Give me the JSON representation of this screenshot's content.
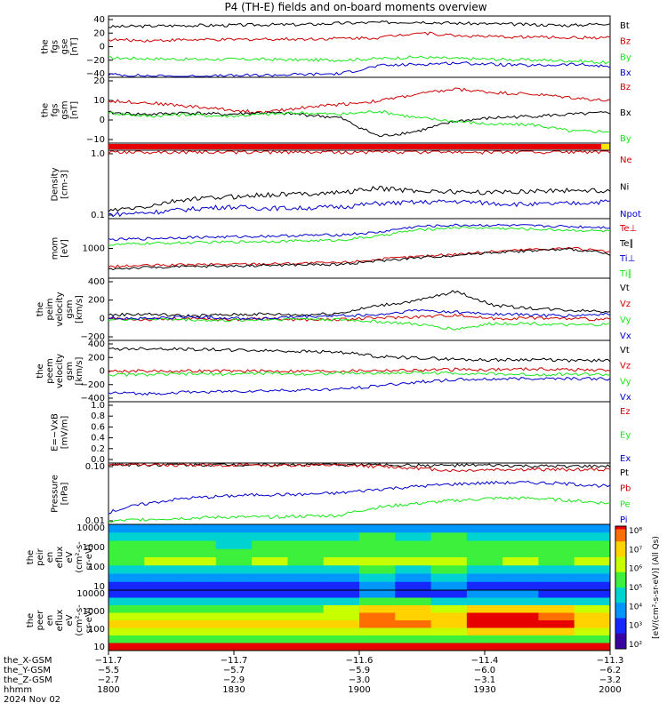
{
  "title": "P4 (TH-E) fields and on-board moments overview",
  "colors": {
    "black": "#000000",
    "red": "#cc0000",
    "green": "#19e619",
    "blue": "#0000cc",
    "bar_red": "#e60000",
    "bar_yellow": "#ffe600"
  },
  "chart_data": [
    {
      "type": "line",
      "ylabel": [
        "the",
        "fgs",
        "gse",
        "[nT]"
      ],
      "yticks": [
        "40",
        "20",
        "0",
        "−20",
        "−40"
      ],
      "ylim": [
        -40,
        45
      ],
      "series": [
        {
          "name": "Bt",
          "color": "black",
          "values": [
            30,
            31,
            32,
            32,
            33,
            33,
            35,
            36,
            37,
            35,
            34,
            33,
            32,
            35
          ]
        },
        {
          "name": "Bz",
          "color": "red",
          "values": [
            12,
            11,
            12,
            12,
            13,
            13,
            14,
            15,
            22,
            18,
            16,
            16,
            15,
            15
          ]
        },
        {
          "name": "By",
          "color": "green",
          "values": [
            -13,
            -14,
            -15,
            -15,
            -15,
            -16,
            -16,
            -14,
            -12,
            -14,
            -15,
            -16,
            -17,
            -20
          ]
        },
        {
          "name": "Bx",
          "color": "blue",
          "values": [
            -36,
            -38,
            -39,
            -38,
            -37,
            -36,
            -35,
            -24,
            -22,
            -20,
            -22,
            -24,
            -22,
            -25
          ]
        }
      ]
    },
    {
      "type": "line",
      "ylabel": [
        "the",
        "fgs",
        "gsm",
        "[nT]"
      ],
      "yticks": [
        "20",
        "10",
        "0",
        "−10"
      ],
      "ylim": [
        -17,
        22
      ],
      "series": [
        {
          "name": "Bz",
          "color": "red",
          "values": [
            8,
            7,
            5,
            3,
            1,
            4,
            6,
            8,
            12,
            15,
            13,
            12,
            10,
            8
          ]
        },
        {
          "name": "Bx",
          "color": "black",
          "values": [
            1,
            0,
            1,
            0,
            1,
            0,
            -2,
            -13,
            -10,
            -4,
            -2,
            -1,
            0,
            1
          ]
        },
        {
          "name": "By",
          "color": "green",
          "values": [
            1,
            -1,
            0,
            -1,
            0,
            1,
            0,
            2,
            -2,
            -4,
            -6,
            -6,
            -10,
            -10
          ]
        }
      ]
    },
    {
      "type": "bar",
      "ylabel": [],
      "labels": []
    },
    {
      "type": "line",
      "ylabel": [
        "Density",
        "[cm-3]"
      ],
      "yticks": [
        "1.0",
        "0.1"
      ],
      "ylog": true,
      "ylim": [
        0.08,
        3.0
      ],
      "series": [
        {
          "name": "Ne",
          "color": "red",
          "values": [
            2.8,
            2.8,
            2.8,
            2.8,
            2.8,
            2.8,
            2.8,
            2.8,
            2.8,
            2.8,
            2.8,
            2.8,
            2.8,
            2.8
          ]
        },
        {
          "name": "Ni",
          "color": "black",
          "values": [
            0.12,
            0.15,
            0.22,
            0.25,
            0.28,
            0.3,
            0.32,
            0.4,
            0.35,
            0.33,
            0.32,
            0.35,
            0.36,
            0.35
          ]
        },
        {
          "name": "Npot",
          "color": "blue",
          "values": [
            0.1,
            0.11,
            0.13,
            0.15,
            0.14,
            0.14,
            0.15,
            0.18,
            0.19,
            0.2,
            0.18,
            0.17,
            0.18,
            0.2
          ]
        }
      ]
    },
    {
      "type": "line",
      "ylabel": [
        "mom",
        "[eV]"
      ],
      "yticks": [
        "1000"
      ],
      "ylog": true,
      "ylim": [
        50,
        15000
      ],
      "series": [
        {
          "name": "Te⊥",
          "color": "red",
          "values": [
            150,
            170,
            180,
            190,
            200,
            210,
            220,
            300,
            400,
            500,
            650,
            800,
            900,
            600
          ]
        },
        {
          "name": "Te∥",
          "color": "black",
          "values": [
            120,
            140,
            150,
            160,
            170,
            180,
            190,
            260,
            350,
            450,
            600,
            700,
            800,
            500
          ]
        },
        {
          "name": "Ti⊥",
          "color": "blue",
          "values": [
            2000,
            2200,
            2500,
            2600,
            2800,
            3000,
            3200,
            4000,
            7000,
            8000,
            8000,
            7500,
            7000,
            6500
          ]
        },
        {
          "name": "Ti∥",
          "color": "green",
          "values": [
            1200,
            1400,
            1500,
            1600,
            1700,
            1800,
            1900,
            2800,
            5000,
            6500,
            6000,
            5500,
            5000,
            4500
          ]
        }
      ]
    },
    {
      "type": "line",
      "ylabel": [
        "the",
        "peim",
        "velocity",
        "gsm",
        "[km/s]"
      ],
      "yticks": [
        "400",
        "200",
        "0",
        "−200"
      ],
      "ylim": [
        -220,
        440
      ],
      "series": [
        {
          "name": "Vt",
          "color": "black",
          "values": [
            50,
            60,
            40,
            50,
            60,
            50,
            70,
            150,
            200,
            300,
            150,
            120,
            100,
            90
          ]
        },
        {
          "name": "Vz",
          "color": "red",
          "values": [
            10,
            0,
            10,
            0,
            10,
            0,
            0,
            20,
            30,
            50,
            10,
            20,
            10,
            0
          ]
        },
        {
          "name": "Vy",
          "color": "green",
          "values": [
            0,
            10,
            0,
            -10,
            0,
            10,
            0,
            -20,
            -50,
            -100,
            -40,
            -40,
            -60,
            -50
          ]
        },
        {
          "name": "Vx",
          "color": "blue",
          "values": [
            20,
            10,
            30,
            20,
            10,
            30,
            40,
            50,
            100,
            80,
            60,
            50,
            40,
            60
          ]
        }
      ]
    },
    {
      "type": "line",
      "ylabel": [
        "the",
        "peem",
        "velocity",
        "gsm",
        "[km/s]"
      ],
      "yticks": [
        "400",
        "200",
        "0",
        "−200",
        "−400"
      ],
      "ylim": [
        -420,
        420
      ],
      "series": [
        {
          "name": "Vt",
          "color": "black",
          "values": [
            300,
            310,
            300,
            290,
            280,
            270,
            260,
            200,
            180,
            160,
            150,
            160,
            140,
            150
          ]
        },
        {
          "name": "Vz",
          "color": "red",
          "values": [
            0,
            0,
            0,
            0,
            0,
            0,
            0,
            10,
            10,
            20,
            20,
            30,
            20,
            10
          ]
        },
        {
          "name": "Vy",
          "color": "green",
          "values": [
            -50,
            -50,
            -40,
            -40,
            -30,
            -40,
            -30,
            -30,
            -20,
            -30,
            -40,
            -50,
            -40,
            -50
          ]
        },
        {
          "name": "Vx",
          "color": "blue",
          "values": [
            -300,
            -310,
            -290,
            -280,
            -270,
            -260,
            -250,
            -200,
            -150,
            -120,
            -110,
            -100,
            -100,
            -110
          ]
        }
      ]
    },
    {
      "type": "line",
      "ylabel": [
        "E=−VxB",
        "[mV/m]"
      ],
      "yticks": [
        "1.0",
        "0.8",
        "0.6",
        "0.4",
        "0.2",
        "0.0"
      ],
      "ylim": [
        -0.05,
        1.0
      ],
      "series": [
        {
          "name": "Ez",
          "color": "red",
          "values": []
        },
        {
          "name": "Ey",
          "color": "green",
          "values": []
        },
        {
          "name": "Ex",
          "color": "blue",
          "values": []
        }
      ]
    },
    {
      "type": "line",
      "ylabel": [
        "Pressure",
        "[nPa]"
      ],
      "yticks": [
        "0.10",
        "0.01"
      ],
      "ylog": true,
      "ylim": [
        0.008,
        0.9
      ],
      "series": [
        {
          "name": "Pt",
          "color": "black",
          "values": [
            0.8,
            0.8,
            0.8,
            0.8,
            0.8,
            0.8,
            0.8,
            0.8,
            0.75,
            0.75,
            0.75,
            0.7,
            0.7,
            0.7
          ]
        },
        {
          "name": "Pb",
          "color": "red",
          "values": [
            0.8,
            0.8,
            0.78,
            0.77,
            0.77,
            0.76,
            0.75,
            0.7,
            0.6,
            0.5,
            0.55,
            0.55,
            0.55,
            0.55
          ]
        },
        {
          "name": "Pe",
          "color": "green",
          "values": [
            0.01,
            0.012,
            0.013,
            0.014,
            0.014,
            0.015,
            0.016,
            0.03,
            0.04,
            0.05,
            0.06,
            0.06,
            0.05,
            0.04
          ]
        },
        {
          "name": "Pi",
          "color": "blue",
          "values": [
            0.02,
            0.04,
            0.06,
            0.07,
            0.08,
            0.08,
            0.09,
            0.12,
            0.15,
            0.18,
            0.2,
            0.2,
            0.18,
            0.15
          ]
        }
      ]
    },
    {
      "type": "heatmap",
      "ylabel": [
        "the",
        "peir",
        "en",
        "eflux",
        "eV",
        "(cm²-s-",
        "sr-eV)"
      ],
      "yticks": [
        "10000",
        "1000",
        "100",
        "10"
      ],
      "rows": [
        [
          2,
          2,
          2,
          2,
          2,
          2,
          2,
          2,
          2,
          2,
          2,
          2,
          2,
          2
        ],
        [
          3,
          3,
          3,
          3,
          3,
          3,
          3,
          4,
          3,
          4,
          3,
          3,
          3,
          3
        ],
        [
          4,
          4,
          4,
          3,
          4,
          4,
          4,
          4,
          4,
          4,
          4,
          4,
          4,
          4
        ],
        [
          4,
          4,
          4,
          4,
          4,
          4,
          4,
          4,
          4,
          4,
          4,
          4,
          4,
          4
        ],
        [
          4,
          5,
          5,
          4,
          5,
          4,
          5,
          5,
          5,
          5,
          4,
          5,
          4,
          5
        ],
        [
          3,
          3,
          3,
          3,
          3,
          3,
          3,
          4,
          3,
          4,
          3,
          3,
          3,
          3
        ],
        [
          2,
          2,
          2,
          2,
          2,
          2,
          2,
          3,
          2,
          3,
          2,
          2,
          2,
          2
        ],
        [
          1,
          1,
          1,
          1,
          1,
          1,
          1,
          2,
          1,
          2,
          1,
          1,
          1,
          1
        ]
      ]
    },
    {
      "type": "heatmap",
      "ylabel": [
        "the",
        "peer",
        "en",
        "eflux",
        "eV",
        "(cm²-s-",
        "sr-eV)"
      ],
      "yticks": [
        "10000",
        "1000",
        "100",
        "10"
      ],
      "rows": [
        [
          1,
          1,
          1,
          1,
          1,
          1,
          1,
          2,
          1,
          1,
          2,
          2,
          1,
          1
        ],
        [
          3,
          3,
          3,
          3,
          3,
          3,
          3,
          4,
          4,
          3,
          3,
          3,
          3,
          3
        ],
        [
          4,
          4,
          4,
          4,
          4,
          4,
          5,
          6,
          6,
          5,
          6,
          6,
          6,
          5
        ],
        [
          5,
          5,
          5,
          5,
          5,
          5,
          5,
          7,
          6,
          6,
          8,
          8,
          7,
          6
        ],
        [
          6,
          6,
          6,
          6,
          6,
          6,
          6,
          7,
          7,
          6,
          8,
          8,
          8,
          6
        ],
        [
          5,
          5,
          5,
          5,
          5,
          5,
          5,
          5,
          5,
          5,
          6,
          6,
          6,
          5
        ],
        [
          4,
          4,
          4,
          4,
          4,
          4,
          4,
          4,
          4,
          4,
          4,
          4,
          4,
          4
        ],
        [
          8,
          8,
          8,
          8,
          8,
          8,
          8,
          8,
          8,
          8,
          8,
          8,
          8,
          8
        ]
      ]
    }
  ],
  "colorbar": {
    "ticks": [
      "10⁸",
      "10⁷",
      "10⁶",
      "10⁵",
      "10⁴",
      "10³",
      "10²"
    ],
    "unit": "[eV/(cm²-s-sr-eV)] (All Qs)"
  },
  "xaxis": {
    "rows": [
      {
        "label": "the_X-GSM",
        "values": [
          "−11.7",
          "−11.7",
          "−11.6",
          "−11.4",
          "−11.3"
        ]
      },
      {
        "label": "the_Y-GSM",
        "values": [
          "−5.5",
          "−5.7",
          "−5.9",
          "−6.0",
          "−6.2"
        ]
      },
      {
        "label": "the_Z-GSM",
        "values": [
          "−2.7",
          "−2.9",
          "−3.0",
          "−3.1",
          "−3.2"
        ]
      },
      {
        "label": "hhmm",
        "values": [
          "1800",
          "1830",
          "1900",
          "1930",
          "2000"
        ]
      }
    ],
    "date": "2024 Nov 02"
  }
}
